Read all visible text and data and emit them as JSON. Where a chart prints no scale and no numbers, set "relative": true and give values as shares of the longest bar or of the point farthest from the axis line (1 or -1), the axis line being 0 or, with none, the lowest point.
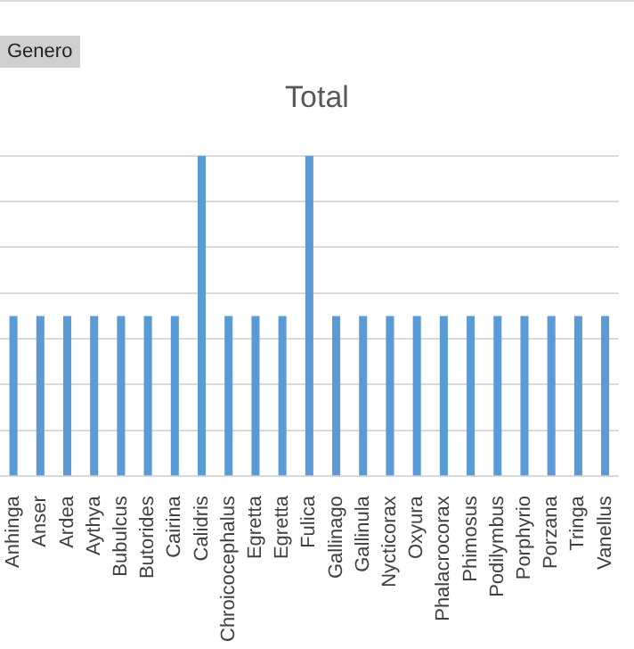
{
  "chart_data": {
    "type": "bar",
    "title": "Total",
    "relative": true,
    "grid": true,
    "color": "#5b9bd5",
    "annotations": [
      "Genero"
    ],
    "categories": [
      "Anhinga",
      "Anser",
      "Ardea",
      "Aythya",
      "Bubulcus",
      "Butorides",
      "Cairina",
      "Calidris",
      "Chroicocephalus",
      "Egretta",
      "Egretta",
      "Fulica",
      "Gallinago",
      "Gallinula",
      "Nycticorax",
      "Oxyura",
      "Phalacrocorax",
      "Phimosus",
      "Podilymbus",
      "Porphyrio",
      "Porzana",
      "Tringa",
      "Vanellus"
    ],
    "values": [
      0.5,
      0.5,
      0.5,
      0.5,
      0.5,
      0.5,
      0.5,
      1,
      0.5,
      0.5,
      0.5,
      1,
      0.5,
      0.5,
      0.5,
      0.5,
      0.5,
      0.5,
      0.5,
      0.5,
      0.5,
      0.5,
      0.5
    ]
  }
}
